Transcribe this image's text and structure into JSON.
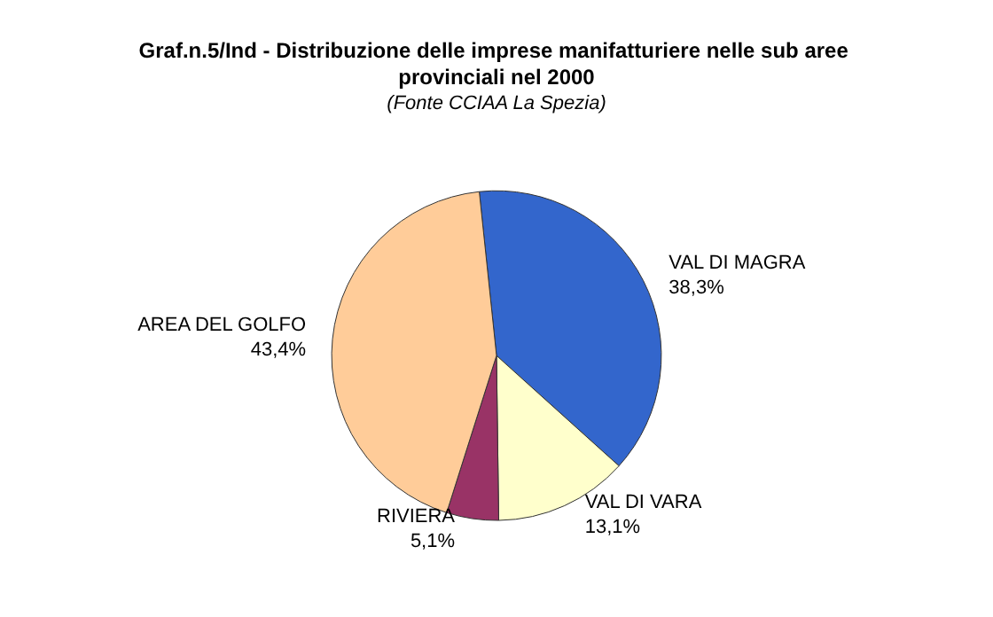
{
  "chart_data": {
    "type": "pie",
    "title": "Graf.n.5/Ind - Distribuzione delle imprese manifatturiere nelle sub aree provinciali nel 2000",
    "subtitle": "(Fonte CCIAA La Spezia)",
    "categories": [
      "VAL DI MAGRA",
      "VAL DI VARA",
      "RIVIERA",
      "AREA DEL GOLFO"
    ],
    "values": [
      38.3,
      13.1,
      5.1,
      43.4
    ],
    "value_labels": [
      "38,3%",
      "13,1%",
      "5,1%",
      "43,4%"
    ],
    "colors": [
      "#3366cc",
      "#ffffcc",
      "#993366",
      "#ffcc99"
    ],
    "legend": false
  }
}
